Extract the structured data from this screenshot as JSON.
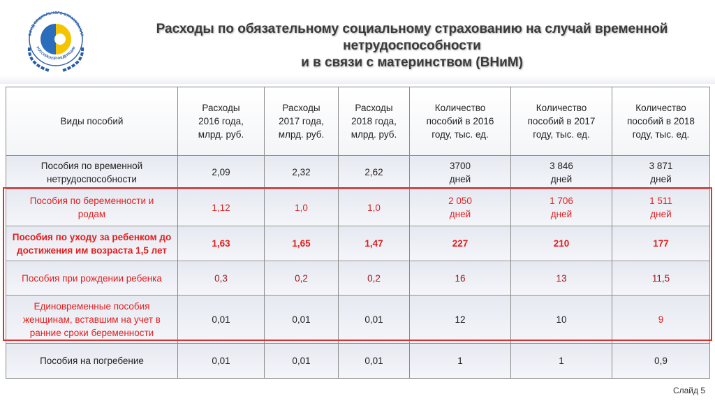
{
  "logo": {
    "top_text": "ФОНД СОЦИАЛЬНОГО СТРАХОВАНИЯ",
    "bottom_text": "РОССИЙСКОЙ ФЕДЕРАЦИИ"
  },
  "header": {
    "title": "Расходы по обязательному социальному страхованию на случай временной нетрудоспособности\nи в связи с материнством (ВНиМ)"
  },
  "table": {
    "header": [
      "Виды пособий",
      "Расходы\n2016 года,\nмлрд. руб.",
      "Расходы\n2017 года,\nмлрд. руб.",
      "Расходы\n2018 года,\nмлрд. руб.",
      "Количество\nпособий в 2016\nгоду, тыс. ед.",
      "Количество\nпособий в 2017\nгоду, тыс. ед.",
      "Количество\nпособий в 2018\nгоду, тыс. ед."
    ],
    "rows": [
      [
        "Пособия по временной\nнетрудоспособности",
        "2,09",
        "2,32",
        "2,62",
        "3700\nдней",
        "3 846\nдней",
        "3 871\nдней"
      ],
      [
        "Пособия по беременности и\nродам",
        "1,12",
        "1,0",
        "1,0",
        "2 050\nдней",
        "1 706\nдней",
        "1 511\nдней"
      ],
      [
        "Пособия по уходу за ребенком до\nдостижения им возраста 1,5 лет",
        "1,63",
        "1,65",
        "1,47",
        "227",
        "210",
        "177"
      ],
      [
        "Пособия при рождении ребенка",
        "0,3",
        "0,2",
        "0,2",
        "16",
        "13",
        "11,5"
      ],
      [
        "Единовременные пособия\nженщинам, вставшим на учет в\nранние сроки беременности",
        "0,01",
        "0,01",
        "0,01",
        "12",
        "10",
        "9"
      ],
      [
        "Пособия на погребение",
        "0,01",
        "0,01",
        "0,01",
        "1",
        "1",
        "0,9"
      ]
    ]
  },
  "footer": {
    "slide": "Слайд 5"
  }
}
